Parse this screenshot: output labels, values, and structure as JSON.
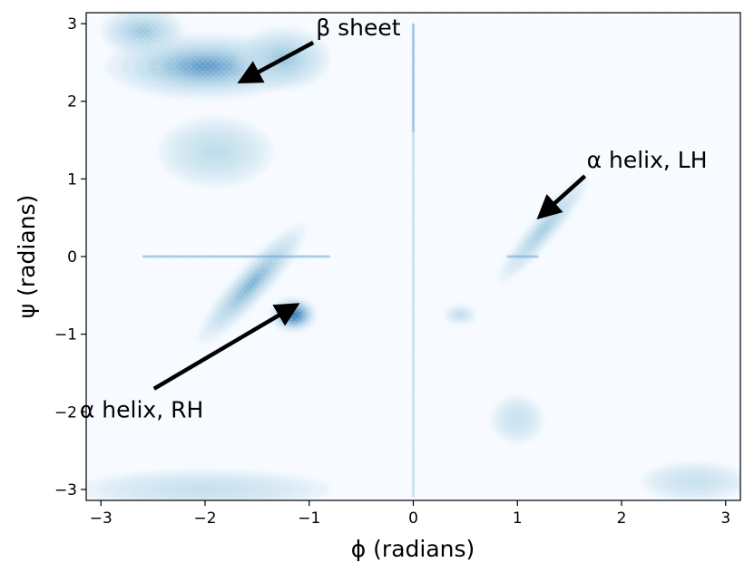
{
  "chart_data": {
    "type": "heatmap",
    "title": "",
    "xlabel": "ϕ (radians)",
    "ylabel": "ψ (radians)",
    "xlim": [
      -3.1416,
      3.1416
    ],
    "ylim": [
      -3.1416,
      3.1416
    ],
    "xticks": [
      -3,
      -2,
      -1,
      0,
      1,
      2,
      3
    ],
    "xtick_labels": [
      "−3",
      "−2",
      "−1",
      "0",
      "1",
      "2",
      "3"
    ],
    "yticks": [
      -3,
      -2,
      -1,
      0,
      1,
      2,
      3
    ],
    "ytick_labels": [
      "−3",
      "−2",
      "−1",
      "0",
      "1",
      "2",
      "3"
    ],
    "grid": false,
    "colormap": "Blues",
    "colors": {
      "low": "#f7fbff",
      "mid": "#9ecae1",
      "high": "#2171b5",
      "peak": "#08519c",
      "arrow": "#000000",
      "frame": "#000000"
    },
    "density_regions": [
      {
        "center": [
          -1.15,
          -0.75
        ],
        "spread": [
          0.22,
          0.22
        ],
        "rotation_deg": 0,
        "intensity": 1.0
      },
      {
        "center": [
          -1.55,
          -0.35
        ],
        "spread": [
          0.75,
          0.22
        ],
        "rotation_deg": -48,
        "intensity": 0.45
      },
      {
        "center": [
          -2.0,
          2.45
        ],
        "spread": [
          0.95,
          0.42
        ],
        "rotation_deg": 0,
        "intensity": 0.55
      },
      {
        "center": [
          -1.25,
          2.55
        ],
        "spread": [
          0.45,
          0.4
        ],
        "rotation_deg": 0,
        "intensity": 0.3
      },
      {
        "center": [
          -2.6,
          2.9
        ],
        "spread": [
          0.4,
          0.3
        ],
        "rotation_deg": 0,
        "intensity": 0.3
      },
      {
        "center": [
          -1.9,
          1.35
        ],
        "spread": [
          0.55,
          0.45
        ],
        "rotation_deg": 0,
        "intensity": 0.12
      },
      {
        "center": [
          1.25,
          0.35
        ],
        "spread": [
          0.65,
          0.16
        ],
        "rotation_deg": -50,
        "intensity": 0.28
      },
      {
        "center": [
          0.45,
          -0.75
        ],
        "spread": [
          0.15,
          0.12
        ],
        "rotation_deg": 0,
        "intensity": 0.12
      },
      {
        "center": [
          1.0,
          -2.1
        ],
        "spread": [
          0.25,
          0.3
        ],
        "rotation_deg": 0,
        "intensity": 0.05
      },
      {
        "center": [
          -2.0,
          -3.0
        ],
        "spread": [
          1.2,
          0.25
        ],
        "rotation_deg": 0,
        "intensity": 0.07
      },
      {
        "center": [
          2.7,
          -2.9
        ],
        "spread": [
          0.5,
          0.25
        ],
        "rotation_deg": 0,
        "intensity": 0.05
      }
    ],
    "line_features": [
      {
        "orientation": "horizontal",
        "at": 0,
        "from": -2.6,
        "to": -0.8,
        "intensity": 0.3
      },
      {
        "orientation": "horizontal",
        "at": 0,
        "from": 0.9,
        "to": 1.2,
        "intensity": 0.3
      },
      {
        "orientation": "vertical",
        "at": 0,
        "from": 1.6,
        "to": 3.0,
        "intensity": 0.35
      },
      {
        "orientation": "vertical",
        "at": 0,
        "from": -3.1,
        "to": 1.6,
        "intensity": 0.15
      }
    ],
    "annotations": [
      {
        "text": "β sheet",
        "xy": [
          -1.65,
          2.26
        ],
        "xytext": [
          -0.9,
          2.8
        ]
      },
      {
        "text": "α helix, LH",
        "xy": [
          1.22,
          0.52
        ],
        "xytext": [
          1.7,
          1.1
        ]
      },
      {
        "text": "α helix, RH",
        "xy": [
          -1.13,
          -0.63
        ],
        "xytext": [
          -2.55,
          -1.75
        ]
      }
    ]
  }
}
